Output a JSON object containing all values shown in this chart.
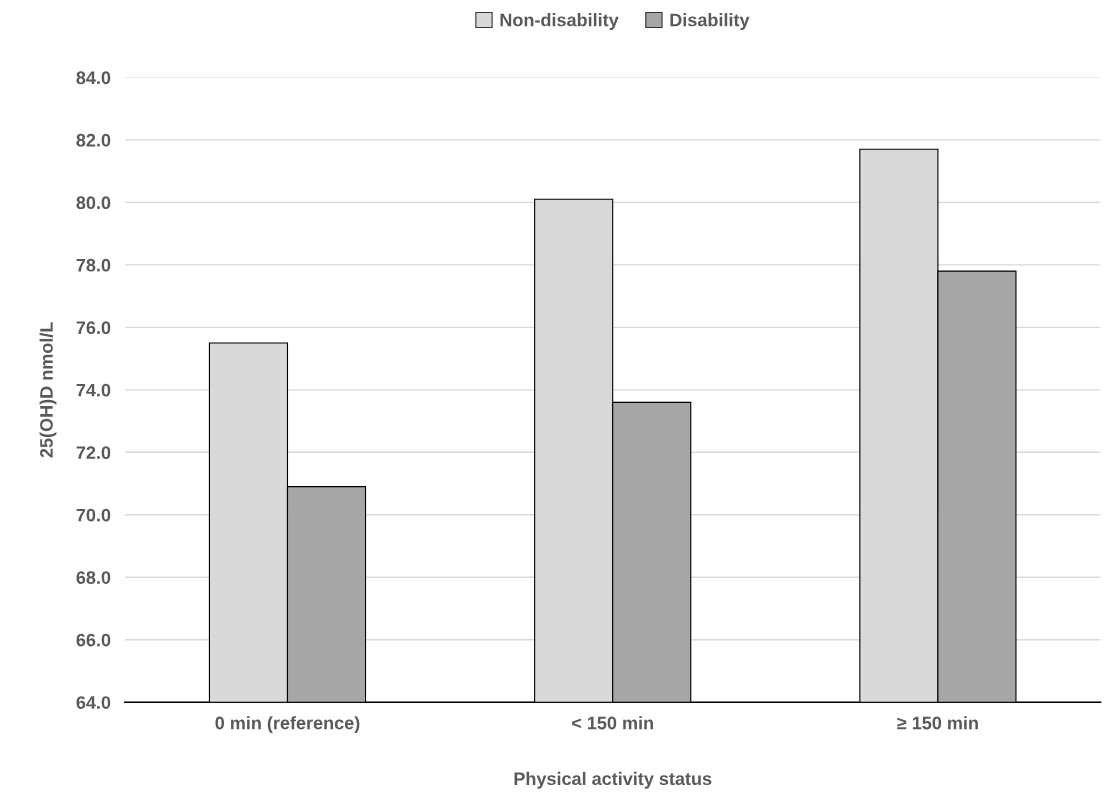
{
  "chart_data": {
    "type": "bar",
    "xlabel": "Physical activity status",
    "ylabel": "25(OH)D nmol/L",
    "categories": [
      "0 min (reference)",
      "< 150 min",
      "≥ 150 min"
    ],
    "series": [
      {
        "name": "Non-disability",
        "color": "#d9d9d9",
        "values": [
          75.5,
          80.1,
          81.7
        ]
      },
      {
        "name": "Disability",
        "color": "#a6a6a6",
        "values": [
          70.9,
          73.6,
          77.8
        ]
      }
    ],
    "ylim": [
      64,
      84
    ],
    "yticks": [
      {
        "value": 64,
        "label": "64.0"
      },
      {
        "value": 66,
        "label": "66.0"
      },
      {
        "value": 68,
        "label": "68.0"
      },
      {
        "value": 70,
        "label": "70.0"
      },
      {
        "value": 72,
        "label": "72.0"
      },
      {
        "value": 74,
        "label": "74.0"
      },
      {
        "value": 76,
        "label": "76.0"
      },
      {
        "value": 78,
        "label": "78.0"
      },
      {
        "value": 80,
        "label": "80.0"
      },
      {
        "value": 82,
        "label": "82.0"
      },
      {
        "value": 84,
        "label": "84.0"
      }
    ],
    "grid": "y",
    "legend": "top"
  }
}
